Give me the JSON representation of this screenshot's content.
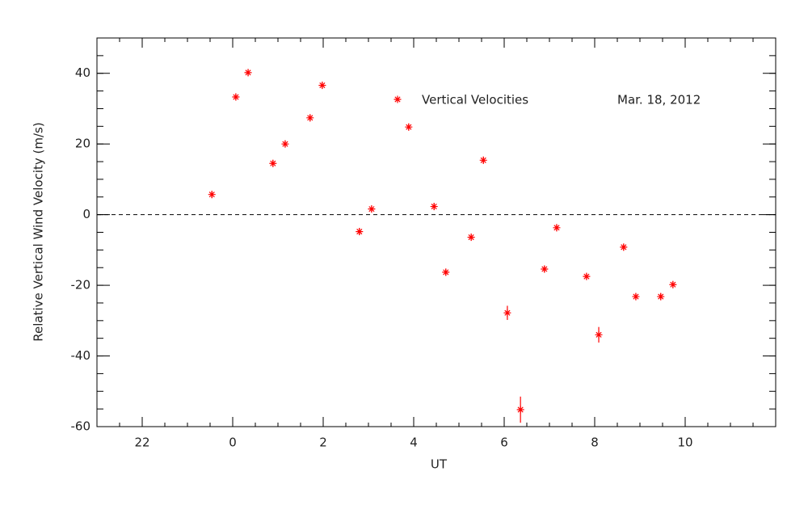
{
  "chart_data": {
    "type": "scatter",
    "x_label": "UT",
    "y_label": "Relative Vertical Wind Velocity (m/s)",
    "annotation": "Mar. 18, 2012",
    "series": [
      {
        "name": "Vertical Velocities",
        "color": "#ff0000",
        "x": [
          -0.46,
          0.07,
          0.34,
          0.89,
          1.16,
          1.71,
          1.98,
          2.8,
          3.07,
          3.89,
          4.45,
          4.71,
          5.27,
          5.54,
          6.07,
          6.36,
          6.89,
          7.16,
          7.82,
          8.09,
          8.64,
          8.91,
          9.46,
          9.73
        ],
        "values": [
          5.7,
          33.3,
          40.2,
          14.5,
          20,
          27.4,
          36.6,
          -4.8,
          1.6,
          24.8,
          2.3,
          -16.3,
          -6.4,
          15.4,
          -27.8,
          -55.2,
          -15.4,
          -3.7,
          -17.5,
          -34.0,
          -9.2,
          -23.2,
          -23.2,
          -19.8
        ],
        "errors": [
          1,
          1,
          1,
          1,
          1,
          1,
          1,
          1,
          1,
          1,
          1,
          1,
          1,
          1,
          2,
          3.7,
          1,
          1,
          1,
          2.2,
          1,
          1,
          1,
          1
        ]
      }
    ],
    "xlim": [
      -3,
      12
    ],
    "xticks": [
      {
        "value": -2,
        "label": "22"
      },
      0,
      2,
      4,
      6,
      8,
      10
    ],
    "ylim": [
      -60,
      50
    ],
    "yticks": [
      -60,
      -40,
      -20,
      0,
      20,
      40
    ],
    "x_minor_step": 0.5,
    "y_minor_step": 5,
    "zero_line": true
  }
}
